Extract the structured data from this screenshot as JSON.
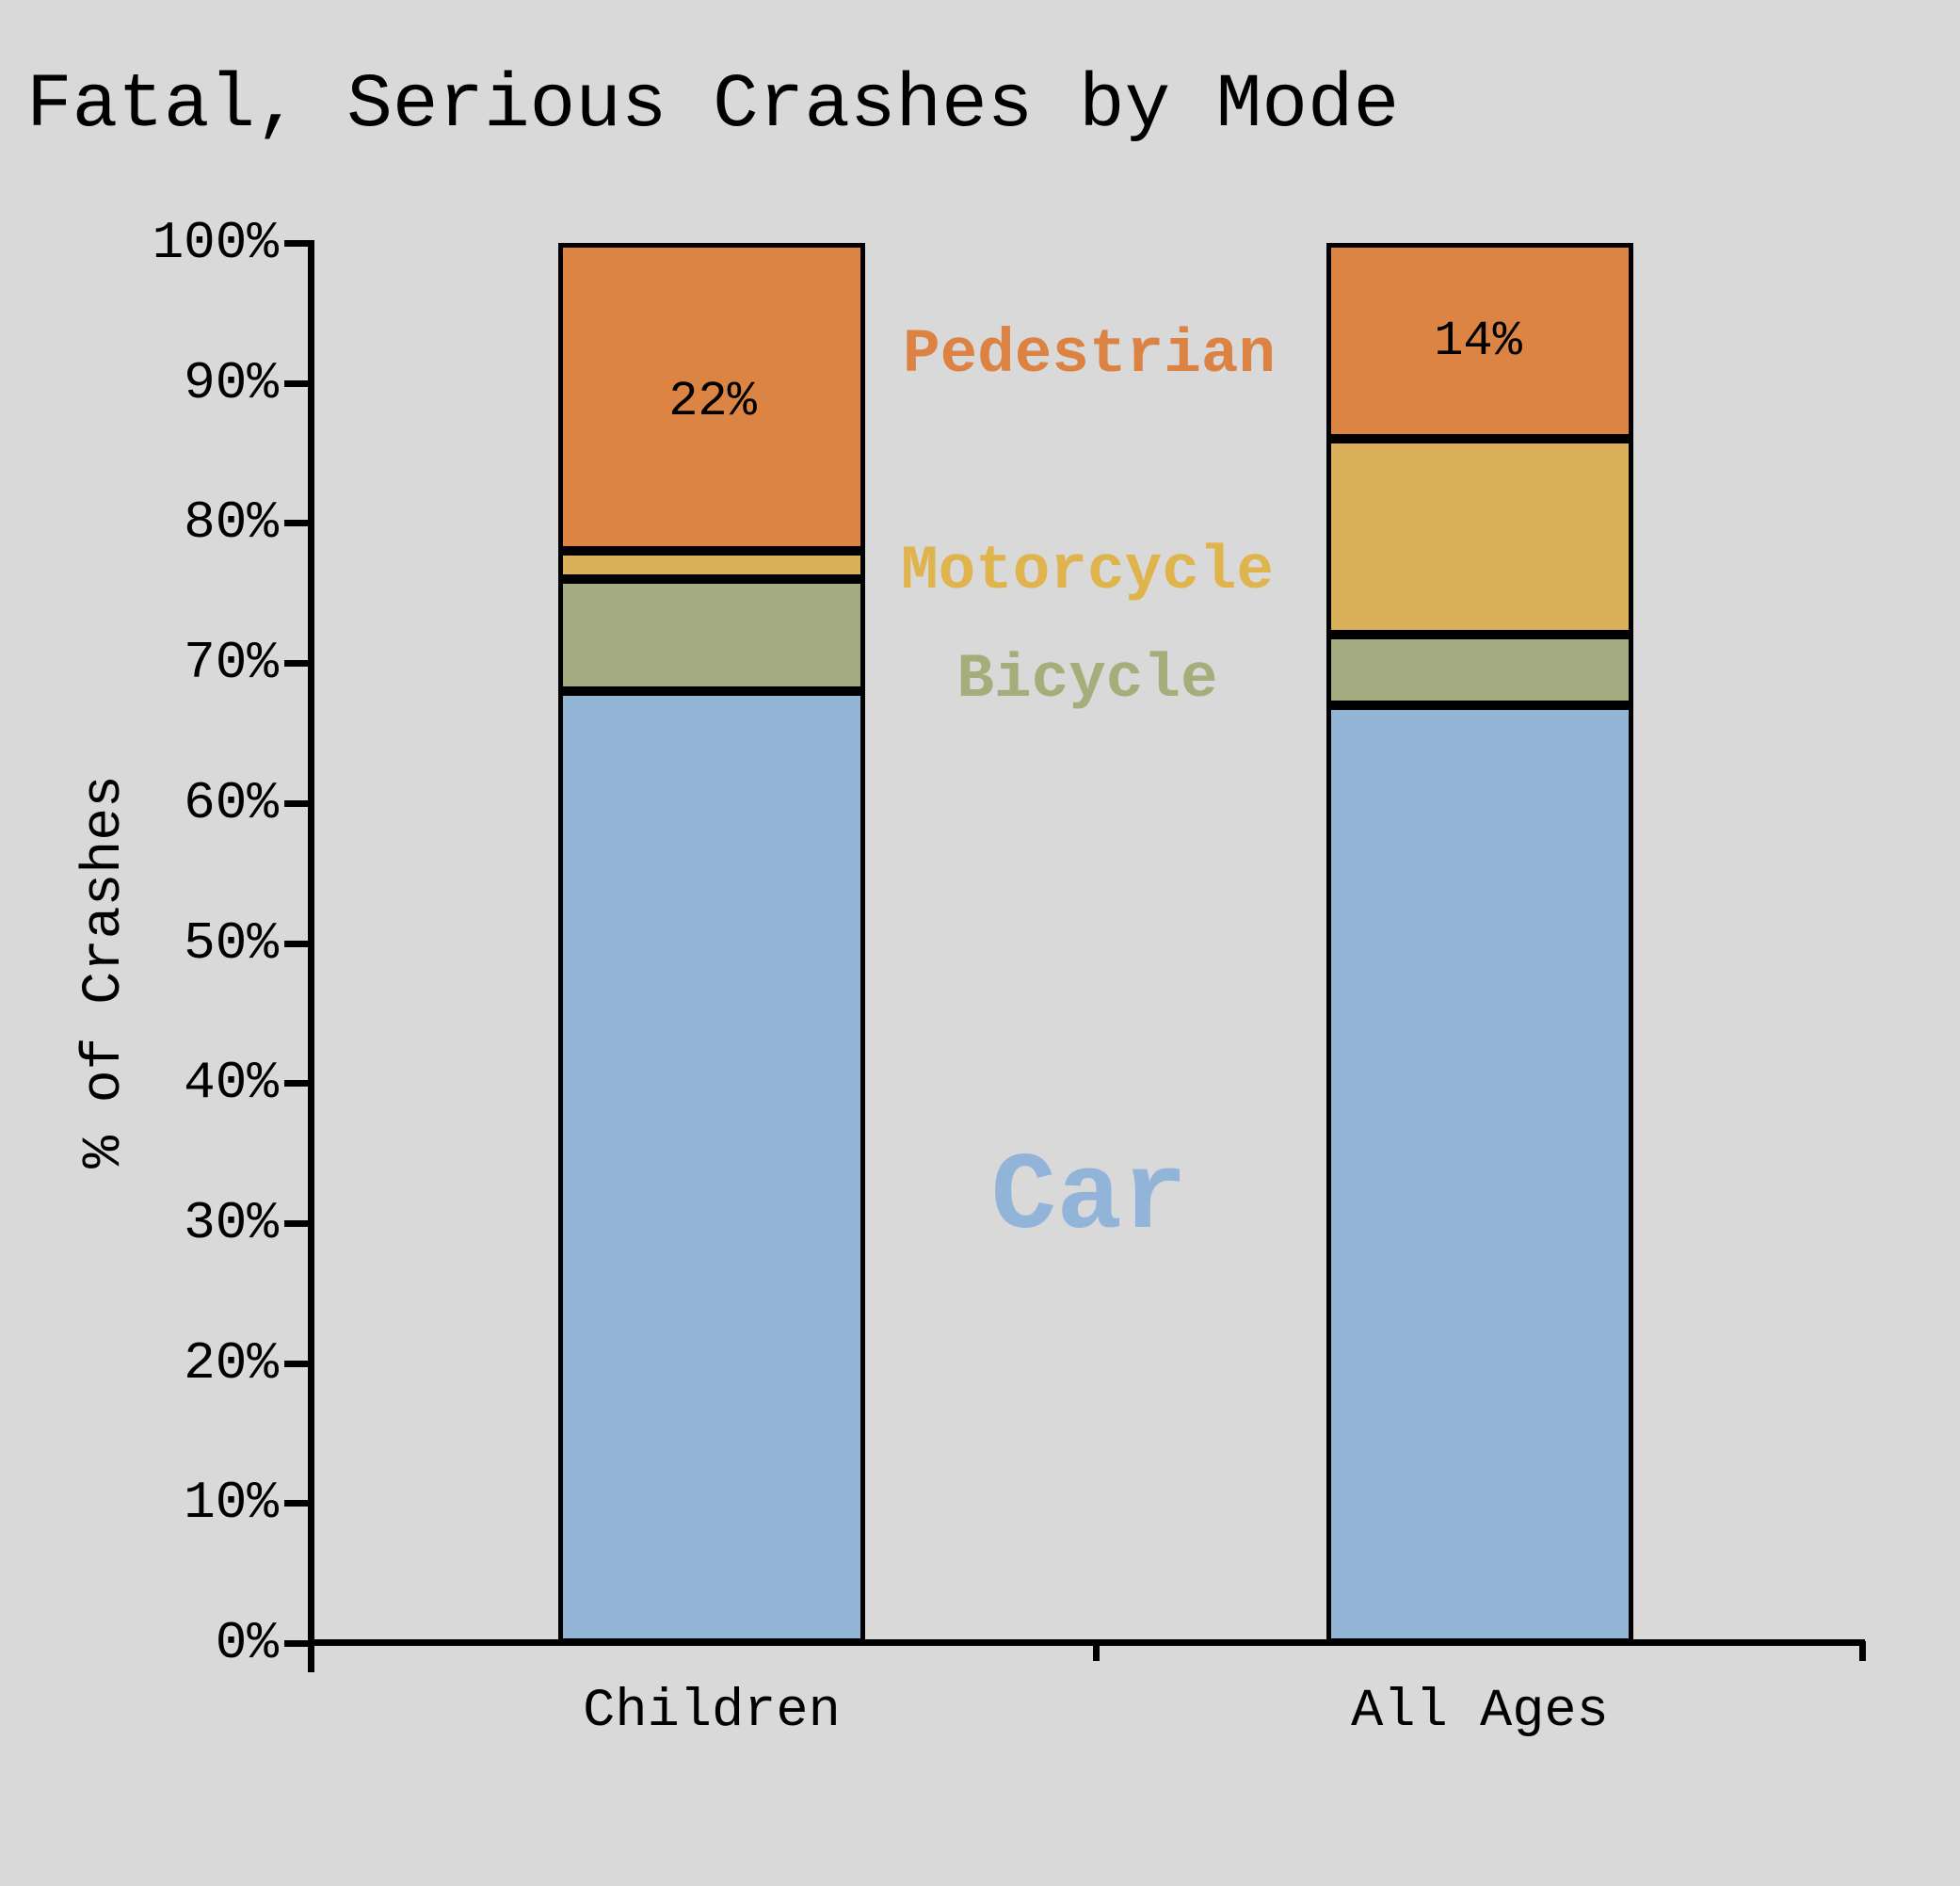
{
  "chart_data": {
    "type": "bar",
    "stacked": true,
    "title": "Fatal, Serious Crashes by Mode",
    "ylabel": "% of Crashes",
    "xlabel": "",
    "categories": [
      "Children",
      "All Ages"
    ],
    "series": [
      {
        "name": "Car",
        "color": "#92b4d5",
        "values": [
          68,
          67
        ]
      },
      {
        "name": "Bicycle",
        "color": "#a4ab80",
        "values": [
          8,
          5
        ]
      },
      {
        "name": "Motorcycle",
        "color": "#dbb05a",
        "values": [
          2,
          14
        ]
      },
      {
        "name": "Pedestrian",
        "color": "#dc8444",
        "values": [
          22,
          14
        ]
      }
    ],
    "value_labels": [
      {
        "series": "Pedestrian",
        "category": "Children",
        "text": "22%"
      },
      {
        "series": "Pedestrian",
        "category": "All Ages",
        "text": "14%"
      }
    ],
    "y_axis": {
      "min": 0,
      "max": 100,
      "tick_step": 10,
      "tick_labels": [
        "0%",
        "10%",
        "20%",
        "30%",
        "40%",
        "50%",
        "60%",
        "70%",
        "80%",
        "90%",
        "100%"
      ]
    },
    "legend": {
      "position": "inline-between-bars",
      "entries": [
        {
          "label": "Pedestrian",
          "color": "#dc8343"
        },
        {
          "label": "Motorcycle",
          "color": "#dfb44d"
        },
        {
          "label": "Bicycle",
          "color": "#a6ad7b"
        },
        {
          "label": "Car",
          "color": "#92b4d9"
        }
      ]
    },
    "grid": false,
    "background": "#d9d9d9",
    "axis_color": "#000000"
  }
}
